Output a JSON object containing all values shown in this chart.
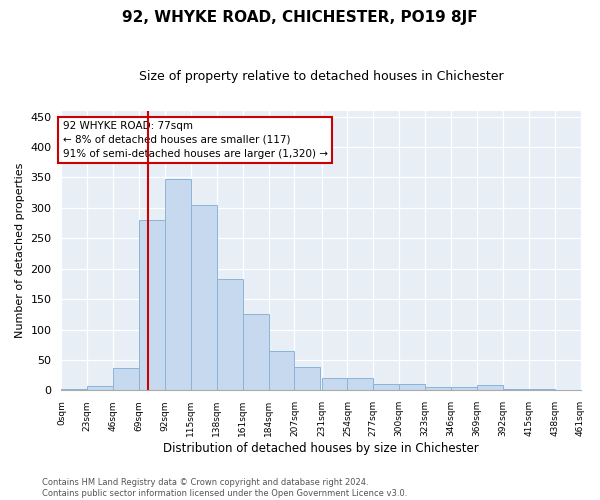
{
  "title": "92, WHYKE ROAD, CHICHESTER, PO19 8JF",
  "subtitle": "Size of property relative to detached houses in Chichester",
  "xlabel": "Distribution of detached houses by size in Chichester",
  "ylabel": "Number of detached properties",
  "bar_color": "#c6d9ee",
  "bar_edge_color": "#8ab4d8",
  "background_color": "#e8eef6",
  "marker_value": 77,
  "marker_color": "#cc0000",
  "annotation_line1": "92 WHYKE ROAD: 77sqm",
  "annotation_line2": "← 8% of detached houses are smaller (117)",
  "annotation_line3": "91% of semi-detached houses are larger (1,320) →",
  "bin_edges": [
    0,
    23,
    46,
    69,
    92,
    115,
    138,
    161,
    184,
    207,
    231,
    254,
    277,
    300,
    323,
    346,
    369,
    392,
    415,
    438,
    461
  ],
  "bin_labels": [
    "0sqm",
    "23sqm",
    "46sqm",
    "69sqm",
    "92sqm",
    "115sqm",
    "138sqm",
    "161sqm",
    "184sqm",
    "207sqm",
    "231sqm",
    "254sqm",
    "277sqm",
    "300sqm",
    "323sqm",
    "346sqm",
    "369sqm",
    "392sqm",
    "415sqm",
    "438sqm",
    "461sqm"
  ],
  "counts": [
    3,
    7,
    37,
    280,
    347,
    305,
    183,
    125,
    65,
    38,
    20,
    20,
    11,
    11,
    5,
    5,
    8,
    3,
    2,
    1
  ],
  "ylim": [
    0,
    460
  ],
  "yticks": [
    0,
    50,
    100,
    150,
    200,
    250,
    300,
    350,
    400,
    450
  ],
  "footer_line1": "Contains HM Land Registry data © Crown copyright and database right 2024.",
  "footer_line2": "Contains public sector information licensed under the Open Government Licence v3.0."
}
